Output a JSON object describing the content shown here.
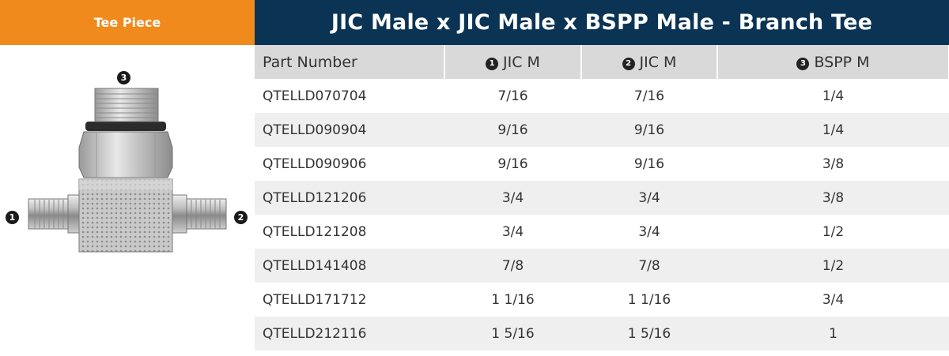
{
  "tab_label": "Tee Piece",
  "title": "JIC Male x JIC Male x BSPP Male - Branch Tee",
  "markers": {
    "one": "1",
    "two": "2",
    "three": "3"
  },
  "columns": [
    {
      "marker": "",
      "label": "Part Number"
    },
    {
      "marker": "1",
      "label": "JIC M"
    },
    {
      "marker": "2",
      "label": "JIC M"
    },
    {
      "marker": "3",
      "label": "BSPP M"
    }
  ],
  "rows": [
    [
      "QTELLD070704",
      "7/16",
      "7/16",
      "1/4"
    ],
    [
      "QTELLD090904",
      "9/16",
      "9/16",
      "1/4"
    ],
    [
      "QTELLD090906",
      "9/16",
      "9/16",
      "3/8"
    ],
    [
      "QTELLD121206",
      "3/4",
      "3/4",
      "3/8"
    ],
    [
      "QTELLD121208",
      "3/4",
      "3/4",
      "1/2"
    ],
    [
      "QTELLD141408",
      "7/8",
      "7/8",
      "1/2"
    ],
    [
      "QTELLD171712",
      "1 1/16",
      "1 1/16",
      "3/4"
    ],
    [
      "QTELLD212116",
      "1 5/16",
      "1 5/16",
      "1"
    ]
  ],
  "colors": {
    "orange": "#f08a1c",
    "navy": "#0a3354",
    "header_gray": "#d9d9d9",
    "stripe": "#efefef"
  }
}
